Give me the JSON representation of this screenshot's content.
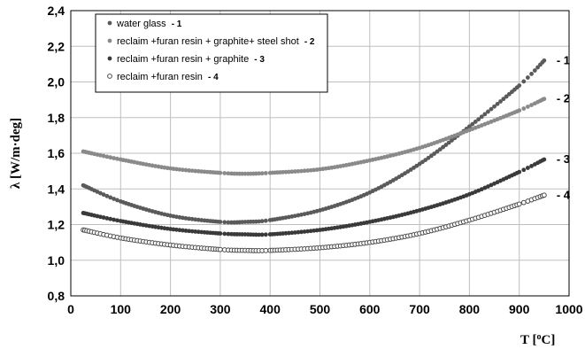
{
  "chart_data": {
    "type": "line",
    "xlabel": "T [",
    "xlabel_sup": "o",
    "xlabel_end": "C]",
    "ylabel": "λ  [W/m·deg]",
    "xlim": [
      0,
      1000
    ],
    "ylim": [
      0.8,
      2.4
    ],
    "xticks": [
      0,
      100,
      200,
      300,
      400,
      500,
      600,
      700,
      800,
      900,
      1000
    ],
    "yticks": [
      "0,8",
      "1,0",
      "1,2",
      "1,4",
      "1,6",
      "1,8",
      "2,0",
      "2,2",
      "2,4"
    ],
    "ytick_values": [
      0.8,
      1.0,
      1.2,
      1.4,
      1.6,
      1.8,
      2.0,
      2.2,
      2.4
    ],
    "grid": "both",
    "legend_position": "top-left",
    "series": [
      {
        "name": "water glass",
        "tag": "- 1",
        "end_label": "- 1",
        "color": "#5a5a5a",
        "marker": "filled",
        "x": [
          25,
          100,
          200,
          300,
          350,
          400,
          500,
          600,
          700,
          800,
          900,
          950
        ],
        "y": [
          1.42,
          1.33,
          1.25,
          1.215,
          1.215,
          1.225,
          1.28,
          1.38,
          1.54,
          1.75,
          1.98,
          2.12
        ]
      },
      {
        "name": "reclaim +furan resin + graphite+ steel shot",
        "tag": "- 2",
        "end_label": "- 2",
        "color": "#8a8a8a",
        "marker": "filled",
        "x": [
          25,
          100,
          200,
          300,
          350,
          400,
          500,
          600,
          700,
          800,
          900,
          950
        ],
        "y": [
          1.61,
          1.565,
          1.515,
          1.49,
          1.485,
          1.49,
          1.51,
          1.56,
          1.63,
          1.73,
          1.84,
          1.905
        ]
      },
      {
        "name": "reclaim +furan resin + graphite",
        "tag": "- 3",
        "end_label": "- 3",
        "color": "#3a3a3a",
        "marker": "filled",
        "x": [
          25,
          100,
          200,
          300,
          350,
          400,
          500,
          600,
          700,
          800,
          900,
          950
        ],
        "y": [
          1.265,
          1.22,
          1.175,
          1.15,
          1.145,
          1.145,
          1.17,
          1.215,
          1.28,
          1.37,
          1.495,
          1.565
        ]
      },
      {
        "name": "reclaim +furan resin",
        "tag": "- 4",
        "end_label": "- 4",
        "color": "#4a4a4a",
        "marker": "open",
        "x": [
          25,
          100,
          200,
          300,
          350,
          400,
          500,
          600,
          700,
          800,
          900,
          950
        ],
        "y": [
          1.17,
          1.125,
          1.085,
          1.06,
          1.055,
          1.055,
          1.07,
          1.1,
          1.15,
          1.225,
          1.315,
          1.365
        ]
      }
    ]
  }
}
